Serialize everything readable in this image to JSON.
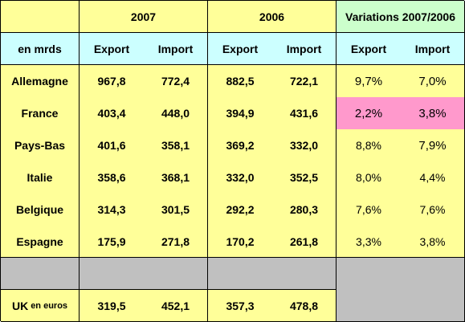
{
  "header": {
    "year_a": "2007",
    "year_b": "2006",
    "variations": "Variations 2007/2006",
    "unit": "en mrds",
    "export": "Export",
    "import": "Import"
  },
  "rows": [
    {
      "country": "Allemagne",
      "exp2007": "967,8",
      "imp2007": "772,4",
      "exp2006": "882,5",
      "imp2006": "722,1",
      "var_exp": "9,7%",
      "var_imp": "7,0%"
    },
    {
      "country": "France",
      "exp2007": "403,4",
      "imp2007": "448,0",
      "exp2006": "394,9",
      "imp2006": "431,6",
      "var_exp": "2,2%",
      "var_imp": "3,8%"
    },
    {
      "country": "Pays-Bas",
      "exp2007": "401,6",
      "imp2007": "358,1",
      "exp2006": "369,2",
      "imp2006": "332,0",
      "var_exp": "8,8%",
      "var_imp": "7,9%"
    },
    {
      "country": "Italie",
      "exp2007": "358,6",
      "imp2007": "368,1",
      "exp2006": "332,0",
      "imp2006": "352,5",
      "var_exp": "8,0%",
      "var_imp": "4,4%"
    },
    {
      "country": "Belgique",
      "exp2007": "314,3",
      "imp2007": "301,5",
      "exp2006": "292,2",
      "imp2006": "280,3",
      "var_exp": "7,6%",
      "var_imp": "7,6%"
    },
    {
      "country": "Espagne",
      "exp2007": "175,9",
      "imp2007": "271,8",
      "exp2006": "170,2",
      "imp2006": "261,8",
      "var_exp": "3,3%",
      "var_imp": "3,8%"
    }
  ],
  "uk": {
    "country": "UK",
    "note": "en euros",
    "exp2007": "319,5",
    "imp2007": "452,1",
    "exp2006": "357,3",
    "imp2006": "478,8"
  },
  "colors": {
    "yellow": "#ffff99",
    "cyan": "#ccffff",
    "green": "#ccffcc",
    "gray": "#c0c0c0",
    "pink": "#ff99cc"
  }
}
